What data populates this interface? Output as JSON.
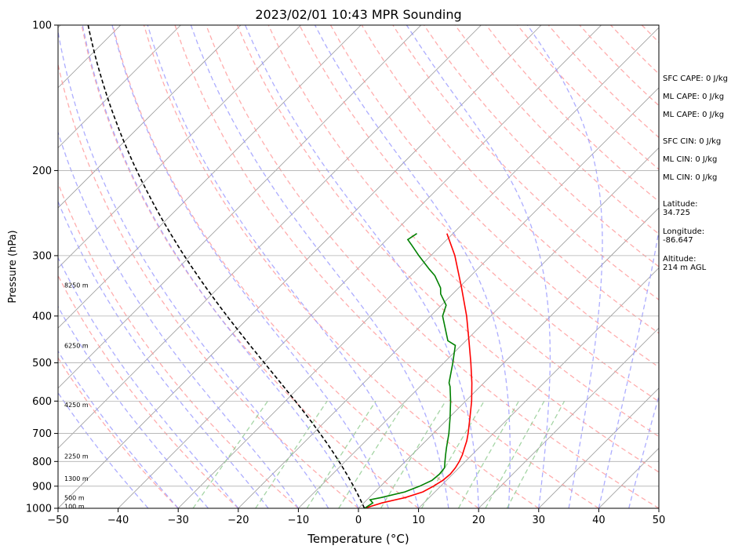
{
  "chart_data": {
    "type": "line",
    "title": "2023/02/01 10:43 MPR Sounding",
    "xlabel": "Temperature (°C)",
    "ylabel": "Pressure (hPa)",
    "xlim": [
      -50,
      50
    ],
    "ylim": [
      1000,
      100
    ],
    "y_scale": "log",
    "grid": true,
    "x_ticks": [
      "−50",
      "−40",
      "−30",
      "−20",
      "−10",
      "0",
      "10",
      "20",
      "30",
      "40",
      "50"
    ],
    "x_tick_values": [
      -50,
      -40,
      -30,
      -20,
      -10,
      0,
      10,
      20,
      30,
      40,
      50
    ],
    "y_ticks": [
      "1000",
      "900",
      "800",
      "700",
      "600",
      "500",
      "400",
      "300",
      "200",
      "100"
    ],
    "y_tick_values": [
      1000,
      900,
      800,
      700,
      600,
      500,
      400,
      300,
      200,
      100
    ],
    "series": [
      {
        "name": "",
        "color": "#ff0000",
        "points": [
          [
            1000,
            1.0
          ],
          [
            975,
            3.0
          ],
          [
            950,
            6.0
          ],
          [
            925,
            8.0
          ],
          [
            900,
            8.8
          ],
          [
            875,
            9.4
          ],
          [
            850,
            9.6
          ],
          [
            825,
            9.4
          ],
          [
            800,
            9.0
          ],
          [
            775,
            8.4
          ],
          [
            750,
            7.6
          ],
          [
            725,
            6.8
          ],
          [
            700,
            5.8
          ],
          [
            650,
            3.5
          ],
          [
            600,
            1.0
          ],
          [
            550,
            -2.0
          ],
          [
            500,
            -5.5
          ],
          [
            450,
            -9.5
          ],
          [
            400,
            -14.0
          ],
          [
            350,
            -19.5
          ],
          [
            300,
            -26.0
          ],
          [
            270,
            -31.0
          ]
        ]
      },
      {
        "name": "",
        "color": "#008000",
        "points": [
          [
            1000,
            1.0
          ],
          [
            975,
            1.5
          ],
          [
            960,
            0.5
          ],
          [
            950,
            2.0
          ],
          [
            925,
            5.0
          ],
          [
            900,
            6.5
          ],
          [
            875,
            7.6
          ],
          [
            850,
            7.8
          ],
          [
            825,
            7.6
          ],
          [
            800,
            6.6
          ],
          [
            775,
            5.6
          ],
          [
            750,
            4.6
          ],
          [
            700,
            2.6
          ],
          [
            650,
            0.2
          ],
          [
            600,
            -2.5
          ],
          [
            560,
            -5.0
          ],
          [
            550,
            -5.8
          ],
          [
            500,
            -8.5
          ],
          [
            460,
            -11.0
          ],
          [
            450,
            -13.0
          ],
          [
            400,
            -18.0
          ],
          [
            380,
            -19.2
          ],
          [
            360,
            -22.0
          ],
          [
            350,
            -23.0
          ],
          [
            330,
            -26.0
          ],
          [
            320,
            -28.0
          ],
          [
            300,
            -32.0
          ],
          [
            285,
            -35.0
          ],
          [
            278,
            -36.5
          ],
          [
            270,
            -36.0
          ]
        ]
      },
      {
        "name": "",
        "color": "#000000",
        "dashed": true,
        "points": "parcel"
      }
    ],
    "height_labels": [
      "100 m",
      "500 m",
      "1300 m",
      "2250 m",
      "4250 m",
      "6250 m",
      "8250 m"
    ],
    "height_label_pressures": [
      990,
      950,
      868,
      780,
      610,
      460,
      345
    ]
  },
  "indices": {
    "sfc_cape": "SFC CAPE: 0 J/kg",
    "ml_cape_1": "ML CAPE: 0 J/kg",
    "ml_cape_2": "ML CAPE: 0 J/kg",
    "sfc_cin": "SFC CIN: 0 J/kg",
    "ml_cin_1": "ML CIN: 0 J/kg",
    "ml_cin_2": "ML CIN: 0 J/kg",
    "latitude": "Latitude:\n34.725",
    "longitude": "Longitude:\n-86.647",
    "altitude": "Altitude:\n214 m AGL"
  },
  "colors": {
    "temperature": "#ff0000",
    "dewpoint": "#008000",
    "parcel": "#000000",
    "dry_adiabat": "#ff9999",
    "moist_adiabat": "#9999ff",
    "mixing_ratio": "#8fca8f",
    "isotherm": "#999999"
  }
}
